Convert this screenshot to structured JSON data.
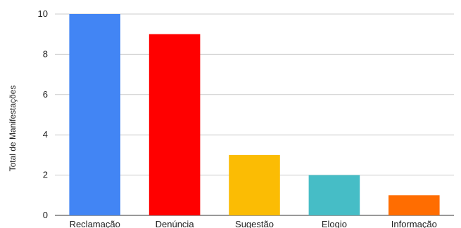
{
  "chart_data": {
    "type": "bar",
    "title": "",
    "xlabel": "",
    "ylabel": "Total de Manifestações",
    "categories": [
      "Reclamação",
      "Denúncia",
      "Sugestão",
      "Elogio",
      "Informação"
    ],
    "values": [
      10,
      9,
      3,
      2,
      1
    ],
    "colors": [
      "#4285f4",
      "#ff0000",
      "#fbbc04",
      "#46bdc6",
      "#ff6d01"
    ],
    "ylim": [
      0,
      10
    ],
    "yticks": [
      "0",
      "2",
      "4",
      "6",
      "8",
      "10"
    ],
    "grid": true,
    "legend": "none"
  }
}
